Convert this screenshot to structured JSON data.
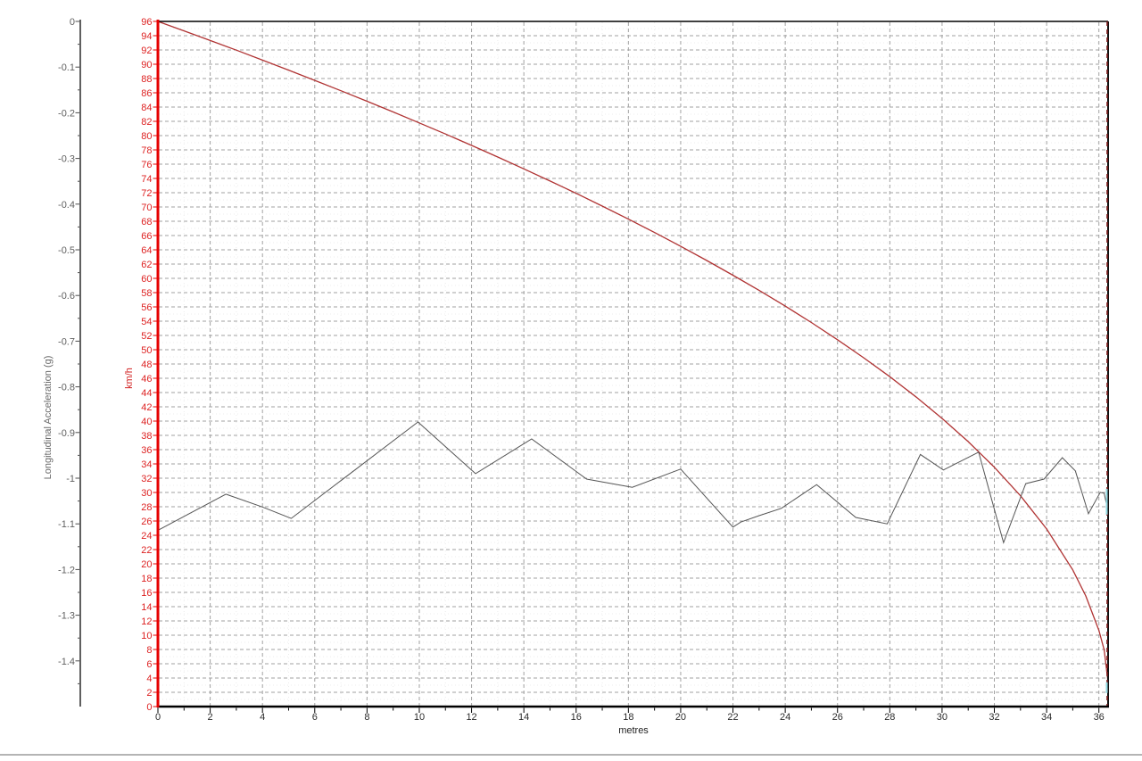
{
  "window": {
    "background": "#ffffff"
  },
  "chart_data": {
    "type": "line",
    "title": "",
    "xlabel": "metres",
    "grid": {
      "major_dash_color": "#a2a2a2",
      "minor_dot_color": "#ececec",
      "h_major_every_kmh": 2,
      "v_major_every_m": 2
    },
    "x_axis": {
      "range": [
        0,
        36.35
      ],
      "ticks": [
        0,
        2,
        4,
        6,
        8,
        10,
        12,
        14,
        16,
        18,
        20,
        22,
        24,
        26,
        28,
        30,
        32,
        34,
        36
      ],
      "minor_tick_step": 1,
      "label_color": "#2b2b2b"
    },
    "speed_axis": {
      "label": "km/h",
      "color": "#e60000",
      "label_color": "#dd2222",
      "range": [
        0,
        96
      ],
      "ticks": [
        0,
        2,
        4,
        6,
        8,
        10,
        12,
        14,
        16,
        18,
        20,
        22,
        24,
        26,
        28,
        30,
        32,
        34,
        36,
        38,
        40,
        42,
        44,
        46,
        48,
        50,
        52,
        54,
        56,
        58,
        60,
        62,
        64,
        66,
        68,
        70,
        72,
        74,
        76,
        78,
        80,
        82,
        84,
        86,
        88,
        90,
        92,
        94,
        96
      ]
    },
    "acceleration_axis": {
      "label": "Longitudinal Acceleration (g)",
      "color": "#4d4d4d",
      "label_color": "#606060",
      "range": [
        0,
        -1.5
      ],
      "tick_labels": [
        "0",
        "-0.1",
        "-0.2",
        "-0.3",
        "-0.4",
        "-0.5",
        "-0.6",
        "-0.7",
        "-0.8",
        "-0.9",
        "-1",
        "-1.1",
        "-1.2",
        "-1.3",
        "-1.4"
      ],
      "tick_values": [
        0,
        -0.1,
        -0.2,
        -0.3,
        -0.4,
        -0.5,
        -0.6,
        -0.7,
        -0.8,
        -0.9,
        -1.0,
        -1.1,
        -1.2,
        -1.3,
        -1.4
      ],
      "minor_tick_step": 0.05
    },
    "series": [
      {
        "name": "speed",
        "unit": "km/h",
        "axis": "speed",
        "color": "#b03333",
        "points": [
          [
            0,
            96
          ],
          [
            1,
            94.67
          ],
          [
            2,
            93.33
          ],
          [
            3,
            91.97
          ],
          [
            4,
            90.58
          ],
          [
            5,
            89.17
          ],
          [
            6,
            87.74
          ],
          [
            7,
            86.29
          ],
          [
            8,
            84.81
          ],
          [
            9,
            83.31
          ],
          [
            10,
            81.78
          ],
          [
            11,
            80.22
          ],
          [
            12,
            78.62
          ],
          [
            13,
            77.0
          ],
          [
            14,
            75.34
          ],
          [
            15,
            73.64
          ],
          [
            16,
            71.91
          ],
          [
            17,
            70.13
          ],
          [
            18,
            68.3
          ],
          [
            19,
            66.42
          ],
          [
            20,
            64.49
          ],
          [
            21,
            62.5
          ],
          [
            22,
            60.44
          ],
          [
            23,
            58.32
          ],
          [
            24,
            56.11
          ],
          [
            25,
            53.81
          ],
          [
            26,
            51.4
          ],
          [
            27,
            48.88
          ],
          [
            28,
            46.22
          ],
          [
            29,
            43.4
          ],
          [
            30,
            40.38
          ],
          [
            31,
            37.12
          ],
          [
            32,
            33.54
          ],
          [
            33,
            29.54
          ],
          [
            34,
            24.89
          ],
          [
            35,
            19.15
          ],
          [
            35.5,
            15.5
          ],
          [
            36,
            10.67
          ],
          [
            36.2,
            7.95
          ],
          [
            36.35,
            3.5
          ]
        ]
      },
      {
        "name": "longitudinal-acceleration",
        "unit": "g",
        "axis": "acceleration",
        "color": "#555555",
        "points": [
          [
            0,
            -1.114
          ],
          [
            2.6,
            -1.035
          ],
          [
            4.0,
            -1.063
          ],
          [
            5.1,
            -1.088
          ],
          [
            9.95,
            -0.877
          ],
          [
            12.15,
            -0.99
          ],
          [
            14.3,
            -0.914
          ],
          [
            16.4,
            -1.002
          ],
          [
            18.15,
            -1.02
          ],
          [
            20.0,
            -0.98
          ],
          [
            22.0,
            -1.107
          ],
          [
            22.3,
            -1.096
          ],
          [
            23.0,
            -1.082
          ],
          [
            23.85,
            -1.066
          ],
          [
            25.2,
            -1.014
          ],
          [
            26.7,
            -1.086
          ],
          [
            27.9,
            -1.1
          ],
          [
            29.17,
            -0.948
          ],
          [
            30.05,
            -0.982
          ],
          [
            31.4,
            -0.943
          ],
          [
            32.35,
            -1.141
          ],
          [
            33.2,
            -1.012
          ],
          [
            33.9,
            -1.002
          ],
          [
            34.6,
            -0.955
          ],
          [
            35.1,
            -0.984
          ],
          [
            35.6,
            -1.078
          ],
          [
            36.05,
            -1.031
          ],
          [
            36.2,
            -1.033
          ],
          [
            36.35,
            -1.072
          ]
        ]
      }
    ],
    "right_edge": {
      "dashed_border_color": "#7c1a1a",
      "edge_trace_color": "#8fd9e2",
      "edge_trace_segments_kmh": [
        [
          30.5,
          26.9
        ],
        [
          3.4,
          1.9
        ]
      ]
    },
    "legend": "none"
  }
}
